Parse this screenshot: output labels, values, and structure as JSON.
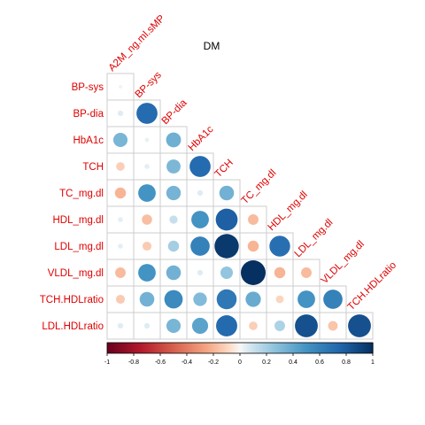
{
  "chart_data": {
    "type": "heatmap",
    "title": "DM",
    "row_labels": [
      "BP-sys",
      "BP-dia",
      "HbA1c",
      "TCH",
      "TC_mg.dl",
      "HDL_mg.dl",
      "LDL_mg.dl",
      "VLDL_mg.dl",
      "TCH.HDLratio",
      "LDL.HDLratio"
    ],
    "col_labels": [
      "A2M_ng.ml.sMP",
      "BP-sys",
      "BP-dia",
      "HbA1c",
      "TCH",
      "TC_mg.dl",
      "HDL_mg.dl",
      "LDL_mg.dl",
      "VLDL_mg.dl",
      "TCH.HDLratio"
    ],
    "matrix": [
      [
        0.02,
        null,
        null,
        null,
        null,
        null,
        null,
        null,
        null,
        null
      ],
      [
        0.05,
        0.72,
        null,
        null,
        null,
        null,
        null,
        null,
        null,
        null
      ],
      [
        0.33,
        0.03,
        0.36,
        null,
        null,
        null,
        null,
        null,
        null,
        null
      ],
      [
        -0.12,
        0.04,
        0.32,
        0.72,
        null,
        null,
        null,
        null,
        null,
        null
      ],
      [
        -0.2,
        0.5,
        0.34,
        0.05,
        0.35,
        null,
        null,
        null,
        null,
        null
      ],
      [
        0.04,
        -0.17,
        0.11,
        0.5,
        0.78,
        -0.18,
        null,
        null,
        null,
        null
      ],
      [
        0.04,
        -0.13,
        0.2,
        0.6,
        0.96,
        -0.2,
        0.7,
        null,
        null,
        null
      ],
      [
        -0.18,
        0.5,
        0.35,
        0.05,
        0.25,
        1.0,
        -0.2,
        -0.18,
        null,
        null
      ],
      [
        -0.13,
        0.35,
        0.55,
        0.3,
        0.65,
        0.38,
        -0.1,
        0.5,
        0.6,
        null
      ],
      [
        0.05,
        0.05,
        0.33,
        0.42,
        0.73,
        -0.12,
        0.18,
        0.85,
        -0.15,
        0.85
      ]
    ],
    "colorbar": {
      "range": [
        -1,
        1
      ],
      "ticks": [
        "-1",
        "-0.8",
        "-0.6",
        "-0.4",
        "-0.2",
        "0",
        "0.2",
        "0.4",
        "0.6",
        "0.8",
        "1"
      ]
    },
    "legend_position": "bottom",
    "grid": true
  },
  "colors": {
    "label_color": "#e00000",
    "grid_color": "#cccccc",
    "negative_end": "#67001f",
    "positive_end": "#053061"
  }
}
